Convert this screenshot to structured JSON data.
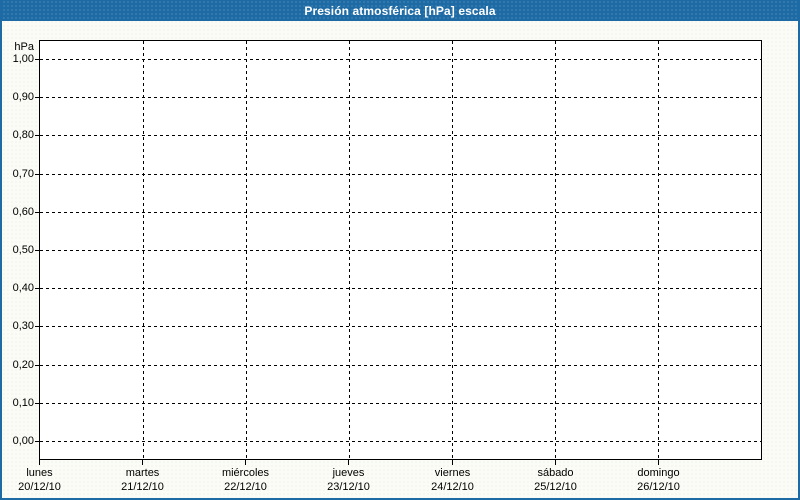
{
  "window": {
    "title": "Presión atmosférica [hPa] escala"
  },
  "colors": {
    "titlebar_bg": "#1d6aa4",
    "titlebar_text": "#ffffff",
    "window_border": "#1d6aa4",
    "content_bg": "#fbfcf5",
    "plot_bg": "#ffffff",
    "axis_line": "#000000",
    "grid_line": "#000000",
    "label_text": "#000000"
  },
  "chart_data": {
    "type": "line",
    "title": "Presión atmosférica [hPa] escala",
    "ylabel": "hPa",
    "ylim": [
      0,
      1
    ],
    "y_tick_step": 0.1,
    "y_tick_labels": [
      "1,00",
      "0,90",
      "0,80",
      "0,70",
      "0,60",
      "0,50",
      "0,40",
      "0,30",
      "0,20",
      "0,10",
      "0,00"
    ],
    "x_categories": [
      {
        "day": "lunes",
        "date": "20/12/10"
      },
      {
        "day": "martes",
        "date": "21/12/10"
      },
      {
        "day": "miércoles",
        "date": "22/12/10"
      },
      {
        "day": "jueves",
        "date": "23/12/10"
      },
      {
        "day": "viernes",
        "date": "24/12/10"
      },
      {
        "day": "sábado",
        "date": "25/12/10"
      },
      {
        "day": "domingo",
        "date": "26/12/10"
      }
    ],
    "series": [],
    "grid": "dashed",
    "legend": "none"
  }
}
